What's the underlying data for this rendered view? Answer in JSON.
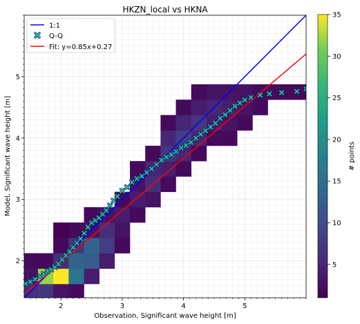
{
  "chart_data": {
    "type": "heatmap",
    "title": "HKZN_local vs HKNA",
    "xlabel": "Observation, Significant wave height [m]",
    "ylabel": "Model, Significant wave height [m]",
    "xlim": [
      1.4,
      6.0
    ],
    "ylim": [
      1.4,
      6.0
    ],
    "x_ticks": [
      2,
      3,
      4,
      5
    ],
    "y_ticks": [
      2,
      3,
      4,
      5
    ],
    "grid": true,
    "legend_position": "top-left",
    "colorbar": {
      "label": "# points",
      "min": 1,
      "max": 35,
      "ticks": [
        5,
        10,
        15,
        20,
        25,
        30,
        35
      ],
      "colormap": "viridis"
    },
    "heatmap": {
      "bin_origin": 1.375,
      "bin_size": 0.25,
      "cells": [
        [
          1.4,
          1.4,
          6
        ],
        [
          1.4,
          1.65,
          3
        ],
        [
          1.4,
          1.9,
          2
        ],
        [
          1.65,
          1.4,
          7
        ],
        [
          1.65,
          1.65,
          32
        ],
        [
          1.65,
          1.9,
          2
        ],
        [
          1.9,
          1.4,
          3
        ],
        [
          1.9,
          1.65,
          35
        ],
        [
          1.9,
          1.9,
          6
        ],
        [
          1.9,
          2.15,
          2
        ],
        [
          1.9,
          2.4,
          1
        ],
        [
          2.15,
          1.4,
          2
        ],
        [
          2.15,
          1.65,
          16
        ],
        [
          2.15,
          1.9,
          13
        ],
        [
          2.15,
          2.15,
          7
        ],
        [
          2.15,
          2.4,
          2
        ],
        [
          2.4,
          1.65,
          4
        ],
        [
          2.4,
          1.9,
          12
        ],
        [
          2.4,
          2.15,
          13
        ],
        [
          2.4,
          2.4,
          3
        ],
        [
          2.4,
          2.65,
          2
        ],
        [
          2.65,
          1.9,
          4
        ],
        [
          2.65,
          2.15,
          8
        ],
        [
          2.65,
          2.4,
          6
        ],
        [
          2.65,
          2.65,
          3
        ],
        [
          2.9,
          2.15,
          2
        ],
        [
          2.9,
          2.4,
          3
        ],
        [
          2.9,
          2.65,
          4
        ],
        [
          2.9,
          2.9,
          2
        ],
        [
          3.15,
          2.65,
          2
        ],
        [
          3.15,
          2.9,
          4
        ],
        [
          3.15,
          3.15,
          3
        ],
        [
          3.15,
          3.4,
          2
        ],
        [
          3.4,
          2.9,
          3
        ],
        [
          3.4,
          3.15,
          6
        ],
        [
          3.4,
          3.4,
          5
        ],
        [
          3.4,
          3.65,
          2
        ],
        [
          3.65,
          3.15,
          2
        ],
        [
          3.65,
          3.4,
          4
        ],
        [
          3.65,
          3.65,
          7
        ],
        [
          3.65,
          3.9,
          5
        ],
        [
          3.65,
          4.15,
          2
        ],
        [
          3.9,
          3.4,
          2
        ],
        [
          3.9,
          3.65,
          5
        ],
        [
          3.9,
          3.9,
          8
        ],
        [
          3.9,
          4.15,
          5
        ],
        [
          3.9,
          4.4,
          2
        ],
        [
          4.15,
          3.65,
          2
        ],
        [
          4.15,
          3.9,
          5
        ],
        [
          4.15,
          4.15,
          7
        ],
        [
          4.15,
          4.4,
          4
        ],
        [
          4.15,
          4.65,
          2
        ],
        [
          4.4,
          3.9,
          2
        ],
        [
          4.4,
          4.15,
          4
        ],
        [
          4.4,
          4.4,
          5
        ],
        [
          4.4,
          4.65,
          3
        ],
        [
          4.65,
          3.9,
          2
        ],
        [
          4.65,
          4.15,
          3
        ],
        [
          4.65,
          4.4,
          4
        ],
        [
          4.65,
          4.65,
          3
        ],
        [
          4.9,
          4.15,
          2
        ],
        [
          4.9,
          4.4,
          3
        ],
        [
          4.9,
          4.65,
          3
        ],
        [
          5.15,
          4.4,
          2
        ],
        [
          5.15,
          4.65,
          2
        ],
        [
          5.4,
          4.65,
          2
        ],
        [
          5.65,
          4.65,
          2
        ],
        [
          5.9,
          4.65,
          2
        ]
      ]
    },
    "series": [
      {
        "name": "1:1",
        "kind": "line",
        "color": "#0000ff",
        "x": [
          1.4,
          6.0
        ],
        "y": [
          1.4,
          6.0
        ]
      },
      {
        "name": "Q-Q",
        "kind": "scatter",
        "color": "#17becf",
        "x": [
          1.42,
          1.5,
          1.58,
          1.66,
          1.72,
          1.78,
          1.84,
          1.9,
          1.96,
          2.02,
          2.08,
          2.14,
          2.2,
          2.26,
          2.32,
          2.38,
          2.44,
          2.5,
          2.56,
          2.62,
          2.68,
          2.74,
          2.8,
          2.86,
          2.92,
          3.0,
          3.08,
          3.16,
          3.24,
          3.32,
          3.4,
          3.48,
          3.56,
          3.64,
          3.72,
          3.8,
          3.88,
          3.96,
          4.04,
          4.12,
          4.2,
          4.28,
          4.36,
          4.44,
          4.52,
          4.6,
          4.68,
          4.76,
          4.84,
          4.92,
          5.0,
          5.1,
          5.25,
          5.4,
          5.6,
          5.85,
          6.0
        ],
        "y": [
          1.63,
          1.66,
          1.7,
          1.75,
          1.79,
          1.83,
          1.86,
          1.9,
          1.95,
          2.02,
          2.09,
          2.15,
          2.22,
          2.29,
          2.36,
          2.45,
          2.55,
          2.62,
          2.66,
          2.7,
          2.76,
          2.82,
          2.9,
          2.98,
          3.05,
          3.14,
          3.2,
          3.28,
          3.34,
          3.38,
          3.44,
          3.5,
          3.57,
          3.64,
          3.69,
          3.73,
          3.78,
          3.84,
          3.88,
          3.93,
          4.0,
          4.06,
          4.12,
          4.18,
          4.24,
          4.32,
          4.38,
          4.45,
          4.52,
          4.57,
          4.62,
          4.66,
          4.7,
          4.72,
          4.74,
          4.76,
          4.8
        ]
      },
      {
        "name": "Fit: y=0.85x+0.27",
        "kind": "line",
        "color": "#ff0000",
        "slope": 0.85,
        "intercept": 0.27,
        "x": [
          1.4,
          6.0
        ]
      }
    ]
  }
}
